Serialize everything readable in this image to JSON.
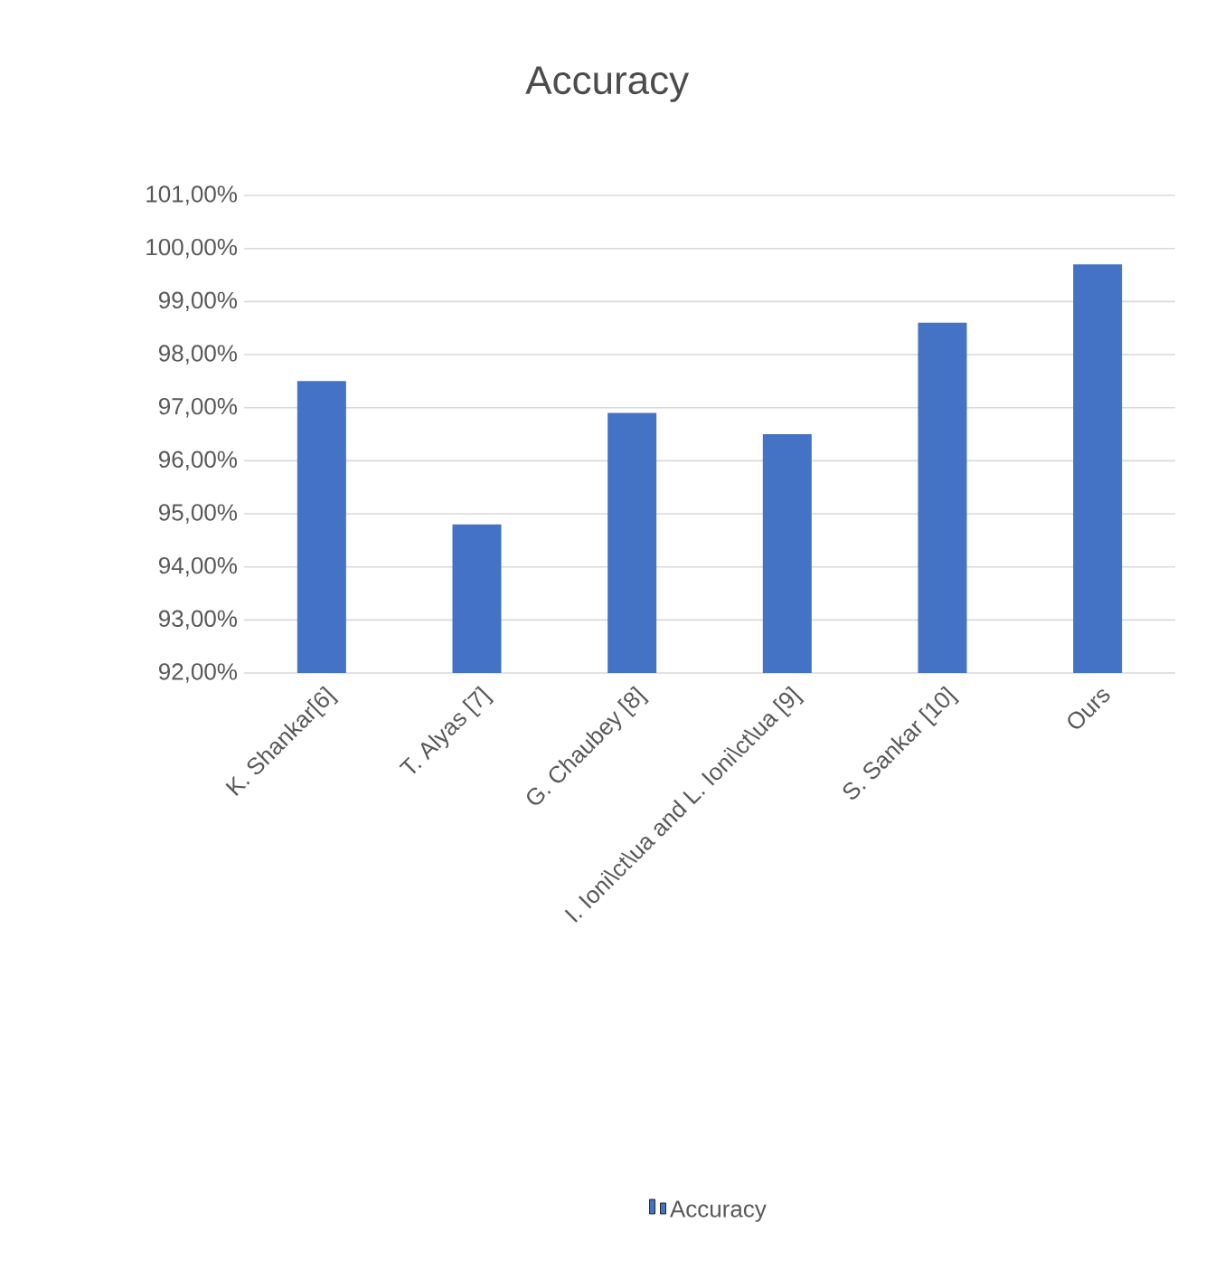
{
  "chart_data": {
    "type": "bar",
    "title": "Accuracy",
    "categories": [
      "K. Shankar[6]",
      "T. Alyas [7]",
      "G. Chaubey [8]",
      "I. Ioni\\ct\\ua and L. Ioni\\ct\\ua [9]",
      "S. Sankar [10]",
      "Ours"
    ],
    "series": [
      {
        "name": "Accuracy",
        "color": "#4472c4",
        "values": [
          97.5,
          94.8,
          96.9,
          96.5,
          98.6,
          99.7
        ]
      }
    ],
    "ylim": [
      92,
      101
    ],
    "yticks": [
      {
        "value": 92,
        "label": "92,00%"
      },
      {
        "value": 93,
        "label": "93,00%"
      },
      {
        "value": 94,
        "label": "94,00%"
      },
      {
        "value": 95,
        "label": "95,00%"
      },
      {
        "value": 96,
        "label": "96,00%"
      },
      {
        "value": 97,
        "label": "97,00%"
      },
      {
        "value": 98,
        "label": "98,00%"
      },
      {
        "value": 99,
        "label": "99,00%"
      },
      {
        "value": 100,
        "label": "100,00%"
      },
      {
        "value": 101,
        "label": "101,00%"
      }
    ],
    "grid": "y",
    "legend": "bottom"
  }
}
